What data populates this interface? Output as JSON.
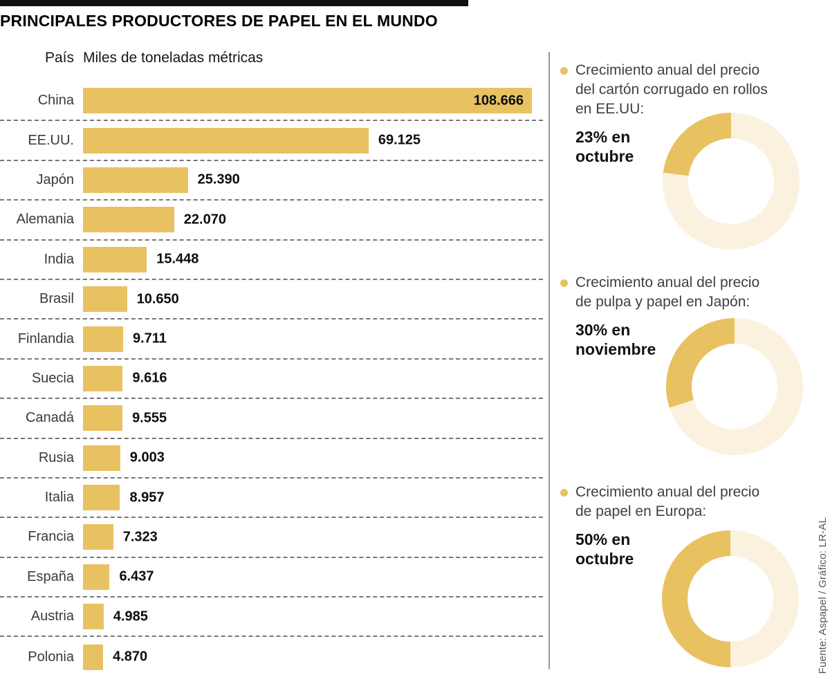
{
  "title": "PRINCIPALES PRODUCTORES DE PAPEL EN EL MUNDO",
  "columns": {
    "country": "País",
    "value": "Miles de toneladas métricas"
  },
  "chart_data": {
    "type": "bar",
    "orientation": "horizontal",
    "title": "PRINCIPALES PRODUCTORES DE PAPEL EN EL MUNDO",
    "xlabel": "Miles de toneladas métricas",
    "categories": [
      "China",
      "EE.UU.",
      "Japón",
      "Alemania",
      "India",
      "Brasil",
      "Finlandia",
      "Suecia",
      "Canadá",
      "Rusia",
      "Italia",
      "Francia",
      "España",
      "Austria",
      "Polonia"
    ],
    "values": [
      108666,
      69125,
      25390,
      22070,
      15448,
      10650,
      9711,
      9616,
      9555,
      9003,
      8957,
      7323,
      6437,
      4985,
      4870
    ],
    "value_labels": [
      "108.666",
      "69.125",
      "25.390",
      "22.070",
      "15.448",
      "10.650",
      "9.711",
      "9.616",
      "9.555",
      "9.003",
      "8.957",
      "7.323",
      "6.437",
      "4.985",
      "4.870"
    ],
    "xmax": 108666,
    "grid": "dashed-row-separators",
    "legend": "none"
  },
  "donut_sections": [
    {
      "heading_lines": [
        "Crecimiento anual del precio",
        "del cartón corrugado en  rollos",
        "en EE.UU:"
      ],
      "stat_lines": [
        "23% en",
        "octubre"
      ],
      "percent": 23,
      "chart_type": "donut"
    },
    {
      "heading_lines": [
        "Crecimiento anual del precio",
        "de pulpa y papel en Japón:"
      ],
      "stat_lines": [
        "30% en",
        "noviembre"
      ],
      "percent": 30,
      "chart_type": "donut"
    },
    {
      "heading_lines": [
        "Crecimiento anual del precio",
        "de papel en Europa:"
      ],
      "stat_lines": [
        "50% en",
        "octubre"
      ],
      "percent": 50,
      "chart_type": "donut"
    }
  ],
  "credit": "Fuente: Aspapel / Gráfico: LR-AL",
  "colors": {
    "gold": "#e8c161",
    "cream": "#faf1df",
    "bar_fill": "#e8c161",
    "title_black": "#000000",
    "text_dark": "#121212",
    "text_gray": "#3f4040",
    "divider_gray": "#9a9a9a",
    "dash_gray": "#767676"
  }
}
